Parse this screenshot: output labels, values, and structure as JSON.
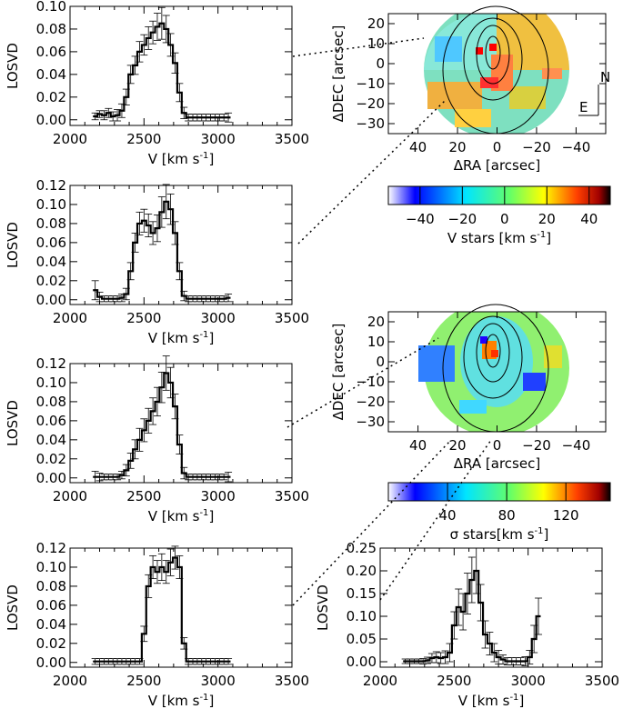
{
  "chart_data": [
    {
      "type": "line",
      "id": "p1",
      "xlabel": "V [km s",
      "xlabel_sup": "-1",
      "xlabel_end": "]",
      "ylabel": "LOSVD",
      "xlim": [
        2000,
        3500
      ],
      "ylim": [
        -0.005,
        0.1
      ],
      "xticks": [
        "2000",
        "2500",
        "3000",
        "3500"
      ],
      "yticks": [
        "0.00",
        "0.02",
        "0.04",
        "0.06",
        "0.08",
        "0.10"
      ],
      "ytick_values": [
        0,
        0.02,
        0.04,
        0.06,
        0.08,
        0.1
      ],
      "x": [
        2170,
        2200,
        2230,
        2260,
        2290,
        2320,
        2350,
        2380,
        2410,
        2440,
        2470,
        2500,
        2530,
        2560,
        2590,
        2620,
        2650,
        2680,
        2710,
        2740,
        2770,
        2800,
        2830,
        2860,
        2890,
        2920,
        2950,
        2980,
        3010,
        3040,
        3070
      ],
      "y": [
        0.003,
        0.005,
        0.004,
        0.006,
        0.003,
        0.004,
        0.008,
        0.02,
        0.04,
        0.048,
        0.06,
        0.066,
        0.072,
        0.077,
        0.082,
        0.085,
        0.08,
        0.066,
        0.05,
        0.024,
        0.006,
        0.002,
        0.002,
        0.002,
        0.002,
        0.002,
        0.002,
        0.002,
        0.002,
        0.002,
        0.002
      ],
      "err": [
        0.003,
        0.003,
        0.004,
        0.004,
        0.004,
        0.005,
        0.006,
        0.007,
        0.008,
        0.008,
        0.009,
        0.009,
        0.01,
        0.01,
        0.012,
        0.014,
        0.012,
        0.01,
        0.009,
        0.008,
        0.005,
        0.003,
        0.003,
        0.003,
        0.003,
        0.003,
        0.003,
        0.003,
        0.003,
        0.003,
        0.004
      ]
    },
    {
      "type": "line",
      "id": "p2",
      "xlabel": "V [km s",
      "xlabel_sup": "-1",
      "xlabel_end": "]",
      "ylabel": "LOSVD",
      "xlim": [
        2000,
        3500
      ],
      "ylim": [
        -0.005,
        0.12
      ],
      "xticks": [
        "2000",
        "2500",
        "3000",
        "3500"
      ],
      "yticks": [
        "0.00",
        "0.02",
        "0.04",
        "0.06",
        "0.08",
        "0.10",
        "0.12"
      ],
      "ytick_values": [
        0,
        0.02,
        0.04,
        0.06,
        0.08,
        0.1,
        0.12
      ],
      "x": [
        2170,
        2200,
        2230,
        2260,
        2290,
        2320,
        2350,
        2380,
        2410,
        2440,
        2470,
        2500,
        2530,
        2560,
        2590,
        2620,
        2650,
        2680,
        2710,
        2740,
        2770,
        2800,
        2830,
        2860,
        2890,
        2920,
        2950,
        2980,
        3010,
        3040,
        3070
      ],
      "y": [
        0.01,
        0.003,
        0.001,
        0.001,
        0.001,
        0.001,
        0.002,
        0.006,
        0.03,
        0.06,
        0.08,
        0.083,
        0.078,
        0.07,
        0.075,
        0.092,
        0.103,
        0.095,
        0.07,
        0.03,
        0.004,
        0.001,
        0.001,
        0.001,
        0.001,
        0.001,
        0.001,
        0.001,
        0.001,
        0.001,
        0.002
      ],
      "err": [
        0.01,
        0.005,
        0.003,
        0.003,
        0.003,
        0.003,
        0.004,
        0.006,
        0.009,
        0.01,
        0.012,
        0.012,
        0.012,
        0.012,
        0.014,
        0.016,
        0.018,
        0.016,
        0.012,
        0.009,
        0.005,
        0.003,
        0.003,
        0.003,
        0.003,
        0.003,
        0.003,
        0.003,
        0.003,
        0.003,
        0.004
      ]
    },
    {
      "type": "line",
      "id": "p3",
      "xlabel": "V [km s",
      "xlabel_sup": "-1",
      "xlabel_end": "]",
      "ylabel": "LOSVD",
      "xlim": [
        2000,
        3500
      ],
      "ylim": [
        -0.005,
        0.12
      ],
      "xticks": [
        "2000",
        "2500",
        "3000",
        "3500"
      ],
      "yticks": [
        "0.00",
        "0.02",
        "0.04",
        "0.06",
        "0.08",
        "0.10",
        "0.12"
      ],
      "ytick_values": [
        0,
        0.02,
        0.04,
        0.06,
        0.08,
        0.1,
        0.12
      ],
      "x": [
        2170,
        2200,
        2230,
        2260,
        2290,
        2320,
        2350,
        2380,
        2410,
        2440,
        2470,
        2500,
        2530,
        2560,
        2590,
        2620,
        2650,
        2680,
        2710,
        2740,
        2770,
        2800,
        2830,
        2860,
        2890,
        2920,
        2950,
        2980,
        3010,
        3040,
        3070
      ],
      "y": [
        0.001,
        0.001,
        0.001,
        0.001,
        0.001,
        0.001,
        0.003,
        0.008,
        0.018,
        0.03,
        0.04,
        0.05,
        0.06,
        0.07,
        0.08,
        0.095,
        0.11,
        0.1,
        0.075,
        0.035,
        0.005,
        0.001,
        0.001,
        0.001,
        0.001,
        0.001,
        0.001,
        0.001,
        0.001,
        0.001,
        0.001
      ],
      "err": [
        0.006,
        0.004,
        0.003,
        0.003,
        0.003,
        0.003,
        0.004,
        0.006,
        0.008,
        0.01,
        0.012,
        0.012,
        0.013,
        0.014,
        0.015,
        0.016,
        0.018,
        0.016,
        0.013,
        0.01,
        0.006,
        0.003,
        0.003,
        0.003,
        0.003,
        0.003,
        0.003,
        0.003,
        0.003,
        0.003,
        0.005
      ]
    },
    {
      "type": "line",
      "id": "p4",
      "xlabel": "V [km s",
      "xlabel_sup": "-1",
      "xlabel_end": "]",
      "ylabel": "LOSVD",
      "xlim": [
        2000,
        3500
      ],
      "ylim": [
        -0.005,
        0.12
      ],
      "xticks": [
        "2000",
        "2500",
        "3000",
        "3500"
      ],
      "yticks": [
        "0.00",
        "0.02",
        "0.04",
        "0.06",
        "0.08",
        "0.10",
        "0.12"
      ],
      "ytick_values": [
        0,
        0.02,
        0.04,
        0.06,
        0.08,
        0.1,
        0.12
      ],
      "x": [
        2170,
        2200,
        2230,
        2260,
        2290,
        2320,
        2350,
        2380,
        2410,
        2440,
        2470,
        2500,
        2530,
        2560,
        2590,
        2620,
        2650,
        2680,
        2710,
        2740,
        2770,
        2800,
        2830,
        2860,
        2890,
        2920,
        2950,
        2980,
        3010,
        3040,
        3070
      ],
      "y": [
        0.001,
        0.001,
        0.001,
        0.001,
        0.001,
        0.001,
        0.001,
        0.001,
        0.001,
        0.001,
        0.001,
        0.03,
        0.08,
        0.1,
        0.095,
        0.1,
        0.095,
        0.105,
        0.11,
        0.1,
        0.02,
        0.001,
        0.001,
        0.001,
        0.001,
        0.001,
        0.001,
        0.001,
        0.001,
        0.001,
        0.001
      ],
      "err": [
        0.003,
        0.003,
        0.003,
        0.003,
        0.003,
        0.003,
        0.003,
        0.003,
        0.003,
        0.003,
        0.003,
        0.008,
        0.012,
        0.012,
        0.012,
        0.014,
        0.012,
        0.014,
        0.012,
        0.012,
        0.006,
        0.003,
        0.003,
        0.003,
        0.003,
        0.003,
        0.003,
        0.003,
        0.003,
        0.003,
        0.003
      ]
    },
    {
      "type": "line",
      "id": "p5",
      "xlabel": "V [km s",
      "xlabel_sup": "-1",
      "xlabel_end": "]",
      "ylabel": "LOSVD",
      "xlim": [
        2000,
        3500
      ],
      "ylim": [
        -0.012,
        0.25
      ],
      "xticks": [
        "2000",
        "2500",
        "3000",
        "3500"
      ],
      "yticks": [
        "0.00",
        "0.05",
        "0.10",
        "0.15",
        "0.20",
        "0.25"
      ],
      "ytick_values": [
        0,
        0.05,
        0.1,
        0.15,
        0.2,
        0.25
      ],
      "x": [
        2170,
        2200,
        2230,
        2260,
        2290,
        2320,
        2350,
        2380,
        2410,
        2440,
        2470,
        2500,
        2530,
        2560,
        2590,
        2620,
        2650,
        2680,
        2710,
        2740,
        2770,
        2800,
        2830,
        2860,
        2890,
        2920,
        2950,
        2980,
        3010,
        3040,
        3070
      ],
      "y": [
        0.001,
        0.001,
        0.001,
        0.001,
        0.001,
        0.003,
        0.008,
        0.01,
        0.008,
        0.01,
        0.02,
        0.08,
        0.12,
        0.11,
        0.15,
        0.18,
        0.2,
        0.13,
        0.06,
        0.04,
        0.02,
        0.01,
        0.005,
        0.001,
        0.001,
        0.001,
        0.001,
        0.001,
        0.01,
        0.05,
        0.1
      ],
      "err": [
        0.005,
        0.005,
        0.005,
        0.005,
        0.006,
        0.007,
        0.01,
        0.012,
        0.012,
        0.014,
        0.02,
        0.03,
        0.04,
        0.04,
        0.045,
        0.05,
        0.05,
        0.04,
        0.03,
        0.025,
        0.02,
        0.015,
        0.01,
        0.008,
        0.008,
        0.008,
        0.008,
        0.01,
        0.015,
        0.03,
        0.04
      ]
    },
    {
      "type": "heatmap",
      "id": "map1",
      "xlabel": "ΔRA [arcsec]",
      "ylabel": "ΔDEC [arcsec]",
      "xlim": [
        55,
        -55
      ],
      "ylim": [
        -35,
        25
      ],
      "xticks": [
        "40",
        "20",
        "0",
        "−20",
        "−40"
      ],
      "xtick_values": [
        40,
        20,
        0,
        -20,
        -40
      ],
      "yticks": [
        "20",
        "10",
        "0",
        "−10",
        "−20",
        "−30"
      ],
      "ytick_values": [
        20,
        10,
        0,
        -10,
        -20,
        -30
      ],
      "compass": {
        "north": "N",
        "east": "E"
      },
      "colorbar": {
        "label": "V stars [km s",
        "label_sup": "-1",
        "label_end": "]",
        "range": [
          -55,
          50
        ],
        "ticks": [
          "−40",
          "−20",
          "0",
          "20",
          "40"
        ],
        "tick_values": [
          -40,
          -20,
          0,
          20,
          40
        ]
      }
    },
    {
      "type": "heatmap",
      "id": "map2",
      "xlabel": "ΔRA [arcsec]",
      "ylabel": "ΔDEC [arcsec]",
      "xlim": [
        55,
        -55
      ],
      "ylim": [
        -35,
        25
      ],
      "xticks": [
        "40",
        "20",
        "0",
        "−20",
        "−40"
      ],
      "xtick_values": [
        40,
        20,
        0,
        -20,
        -40
      ],
      "yticks": [
        "20",
        "10",
        "0",
        "−10",
        "−20",
        "−30"
      ],
      "ytick_values": [
        20,
        10,
        0,
        -10,
        -20,
        -30
      ],
      "colorbar": {
        "label": "σ stars[km s",
        "label_sup": "-1",
        "label_end": "]",
        "range": [
          0,
          150
        ],
        "ticks": [
          "40",
          "80",
          "120"
        ],
        "tick_values": [
          40,
          80,
          120
        ]
      }
    }
  ]
}
